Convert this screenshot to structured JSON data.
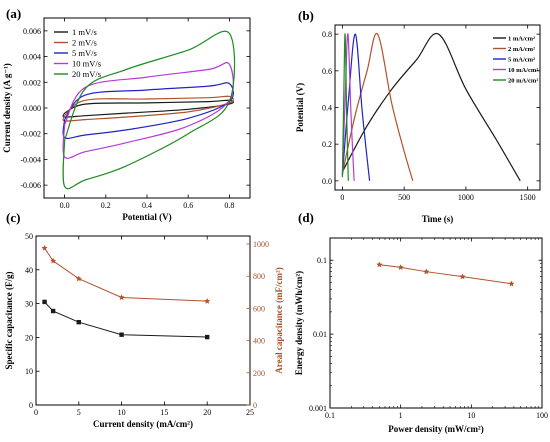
{
  "chart_data": [
    {
      "panel": "(a)",
      "type": "line",
      "xlabel": "Potential (V)",
      "ylabel": "Current density (A g⁻¹)",
      "xlim": [
        -0.1,
        0.9
      ],
      "ylim": [
        -0.007,
        0.007
      ],
      "xticks": [
        "0.0",
        "0.2",
        "0.4",
        "0.6",
        "0.8"
      ],
      "yticks": [
        "-0.006",
        "-0.004",
        "-0.002",
        "0.000",
        "0.002",
        "0.004",
        "0.006"
      ],
      "legend_position": "top-left",
      "series": [
        {
          "name": "1 mV/s",
          "color": "#1a1a1a",
          "upper": [
            [
              0,
              -0.0004
            ],
            [
              0.1,
              0.0003
            ],
            [
              0.4,
              0.0004
            ],
            [
              0.7,
              0.0005
            ],
            [
              0.8,
              0.0006
            ]
          ],
          "lower": [
            [
              0.8,
              0.0003
            ],
            [
              0.6,
              -0.0001
            ],
            [
              0.3,
              -0.0004
            ],
            [
              0.1,
              -0.0006
            ],
            [
              0,
              -0.0007
            ]
          ]
        },
        {
          "name": "2 mV/s",
          "color": "#b0522c",
          "upper": [
            [
              0,
              -0.0006
            ],
            [
              0.1,
              0.0006
            ],
            [
              0.4,
              0.0007
            ],
            [
              0.7,
              0.0008
            ],
            [
              0.8,
              0.0009
            ]
          ],
          "lower": [
            [
              0.8,
              0.0004
            ],
            [
              0.6,
              -0.0003
            ],
            [
              0.3,
              -0.0007
            ],
            [
              0.1,
              -0.0009
            ],
            [
              0,
              -0.001
            ]
          ]
        },
        {
          "name": "5 mV/s",
          "color": "#2323c4",
          "upper": [
            [
              0,
              -0.0009
            ],
            [
              0.1,
              0.001
            ],
            [
              0.4,
              0.0014
            ],
            [
              0.7,
              0.0017
            ],
            [
              0.8,
              0.0019
            ]
          ],
          "lower": [
            [
              0.8,
              0.0005
            ],
            [
              0.6,
              -0.0008
            ],
            [
              0.3,
              -0.0017
            ],
            [
              0.1,
              -0.0021
            ],
            [
              0,
              -0.0023
            ]
          ]
        },
        {
          "name": "10 mV/s",
          "color": "#b43cd6",
          "upper": [
            [
              0,
              -0.0013
            ],
            [
              0.1,
              0.0016
            ],
            [
              0.4,
              0.0024
            ],
            [
              0.7,
              0.003
            ],
            [
              0.8,
              0.0034
            ]
          ],
          "lower": [
            [
              0.8,
              0.0006
            ],
            [
              0.6,
              -0.0014
            ],
            [
              0.3,
              -0.0027
            ],
            [
              0.1,
              -0.0034
            ],
            [
              0,
              -0.0038
            ]
          ]
        },
        {
          "name": "20 mV/s",
          "color": "#1e8c1e",
          "upper": [
            [
              0,
              -0.0025
            ],
            [
              0.1,
              0.0015
            ],
            [
              0.3,
              0.003
            ],
            [
              0.6,
              0.0045
            ],
            [
              0.8,
              0.0058
            ]
          ],
          "lower": [
            [
              0.8,
              0.0005
            ],
            [
              0.6,
              -0.002
            ],
            [
              0.3,
              -0.0045
            ],
            [
              0.1,
              -0.0056
            ],
            [
              0,
              -0.0061
            ]
          ]
        }
      ]
    },
    {
      "panel": "(b)",
      "type": "line",
      "xlabel": "Time (s)",
      "ylabel": "Potential (V)",
      "xlim": [
        -60,
        1600
      ],
      "ylim": [
        -0.05,
        0.85
      ],
      "xticks": [
        "0",
        "500",
        "1000",
        "1500"
      ],
      "yticks": [
        "0.0",
        "0.2",
        "0.4",
        "0.6",
        "0.8"
      ],
      "legend_position": "top-right",
      "series": [
        {
          "name": "1 mA/cm²",
          "color": "#1a1a1a",
          "points": [
            [
              0,
              0.05
            ],
            [
              200,
              0.3
            ],
            [
              400,
              0.5
            ],
            [
              600,
              0.66
            ],
            [
              780,
              0.8
            ],
            [
              1000,
              0.5
            ],
            [
              1250,
              0.22
            ],
            [
              1440,
              0
            ]
          ]
        },
        {
          "name": "2 mA/cm²",
          "color": "#b0522c",
          "points": [
            [
              0,
              0.04
            ],
            [
              100,
              0.35
            ],
            [
              200,
              0.6
            ],
            [
              285,
              0.8
            ],
            [
              400,
              0.42
            ],
            [
              500,
              0.16
            ],
            [
              570,
              0
            ]
          ]
        },
        {
          "name": "5 mA/cm²",
          "color": "#2323c4",
          "points": [
            [
              0,
              0.03
            ],
            [
              50,
              0.45
            ],
            [
              105,
              0.8
            ],
            [
              160,
              0.38
            ],
            [
              220,
              0
            ]
          ]
        },
        {
          "name": "10 mA/cm²",
          "color": "#b43cd6",
          "points": [
            [
              0,
              0.03
            ],
            [
              25,
              0.5
            ],
            [
              45,
              0.8
            ],
            [
              70,
              0.35
            ],
            [
              95,
              0
            ]
          ]
        },
        {
          "name": "20 mA/cm²",
          "color": "#1e8c1e",
          "points": [
            [
              0,
              0.02
            ],
            [
              12,
              0.5
            ],
            [
              22,
              0.8
            ],
            [
              35,
              0.35
            ],
            [
              48,
              0
            ]
          ]
        }
      ]
    },
    {
      "panel": "(c)",
      "type": "line",
      "xlabel": "Current density (mA/cm²)",
      "ylabel": "Specific capacitance (F/g)",
      "ylabel_right": "Areal capacitance (mF/cm²)",
      "xlim": [
        0,
        25
      ],
      "ylim": [
        0,
        50
      ],
      "ylim_right": [
        0,
        1050
      ],
      "xticks": [
        "0",
        "5",
        "10",
        "15",
        "20",
        "25"
      ],
      "yticks": [
        "0",
        "10",
        "20",
        "30",
        "40",
        "50"
      ],
      "yticks_right": [
        "0",
        "200",
        "400",
        "600",
        "800",
        "1000"
      ],
      "series": [
        {
          "name": "Specific capacitance",
          "color": "#1a1a1a",
          "marker": "square",
          "axis": "left",
          "x": [
            1,
            2,
            5,
            10,
            20
          ],
          "y": [
            30.5,
            27.8,
            24.5,
            20.8,
            20.1
          ]
        },
        {
          "name": "Areal capacitance",
          "color": "#b0522c",
          "marker": "star",
          "axis": "right",
          "x": [
            1,
            2,
            5,
            10,
            20
          ],
          "y": [
            975,
            895,
            785,
            668,
            645
          ]
        }
      ]
    },
    {
      "panel": "(d)",
      "type": "line",
      "xlabel": "Power density (mW/cm²)",
      "ylabel": "Energy density (mWh/cm²)",
      "xscale": "log",
      "yscale": "log",
      "xlim": [
        0.1,
        100
      ],
      "ylim": [
        0.001,
        0.2
      ],
      "xticks": [
        "0.1",
        "1",
        "10",
        "100"
      ],
      "yticks": [
        "0.001",
        "0.01",
        "0.1"
      ],
      "series": [
        {
          "name": "Energy density",
          "color": "#b0522c",
          "marker": "star",
          "x": [
            0.5,
            1.0,
            2.3,
            7.5,
            37
          ],
          "y": [
            0.087,
            0.08,
            0.07,
            0.06,
            0.048
          ]
        }
      ]
    }
  ]
}
